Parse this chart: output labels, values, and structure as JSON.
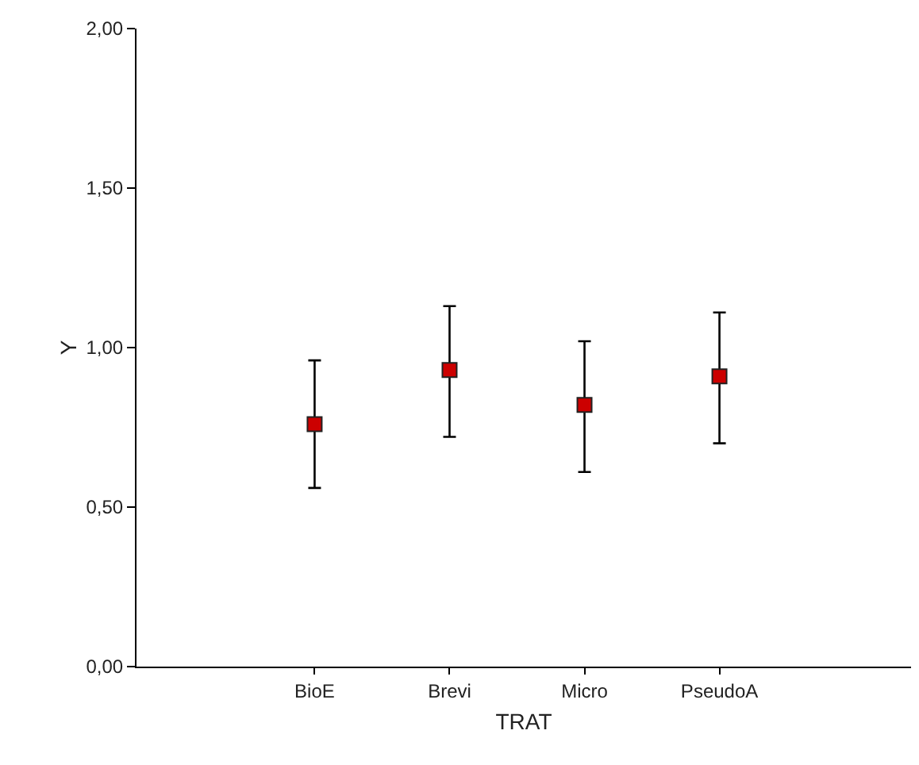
{
  "chart_data": {
    "type": "scatter",
    "xlabel": "TRAT",
    "ylabel": "Y",
    "categories": [
      "BioE",
      "Brevi",
      "Micro",
      "PseudoA"
    ],
    "series": [
      {
        "color": "#cc0000",
        "values": [
          0.76,
          0.93,
          0.82,
          0.91
        ],
        "errors": [
          [
            0.56,
            0.96
          ],
          [
            0.72,
            1.13
          ],
          [
            0.61,
            1.02
          ],
          [
            0.7,
            1.11
          ]
        ]
      }
    ],
    "ylim": [
      0,
      2
    ],
    "yticks": [
      {
        "value": 0,
        "label": "0,00"
      },
      {
        "value": 0.5,
        "label": "0,50"
      },
      {
        "value": 1,
        "label": "1,00"
      },
      {
        "value": 1.5,
        "label": "1,50"
      },
      {
        "value": 2,
        "label": "2,00"
      }
    ],
    "marker": "square",
    "grid": false
  }
}
